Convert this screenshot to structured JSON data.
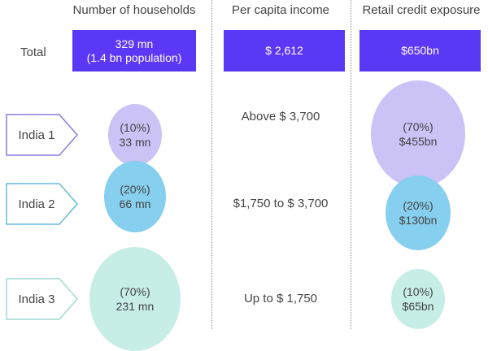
{
  "headers": {
    "households": "Number of households",
    "income": "Per capita income",
    "credit": "Retail credit exposure"
  },
  "total": {
    "label": "Total",
    "households_line1": "329 mn",
    "households_line2": "(1.4 bn population)",
    "income": "$ 2,612",
    "credit": "$650bn"
  },
  "segments": [
    {
      "label": "India 1",
      "households_share": "(10%)",
      "households": "33 mn",
      "income": "Above $ 3,700",
      "credit_share": "(70%)",
      "credit": "$455bn"
    },
    {
      "label": "India 2",
      "households_share": "(20%)",
      "households": "66 mn",
      "income": "$1,750 to $ 3,700",
      "credit_share": "(20%)",
      "credit": "$130bn"
    },
    {
      "label": "India 3",
      "households_share": "(70%)",
      "households": "231 mn",
      "income": "Up to $ 1,750",
      "credit_share": "(10%)",
      "credit": "$65bn"
    }
  ],
  "colors": {
    "total_box": "#5b37f6",
    "india1": "#cbc2f6",
    "india2": "#86cfee",
    "india3": "#c6ede6"
  }
}
